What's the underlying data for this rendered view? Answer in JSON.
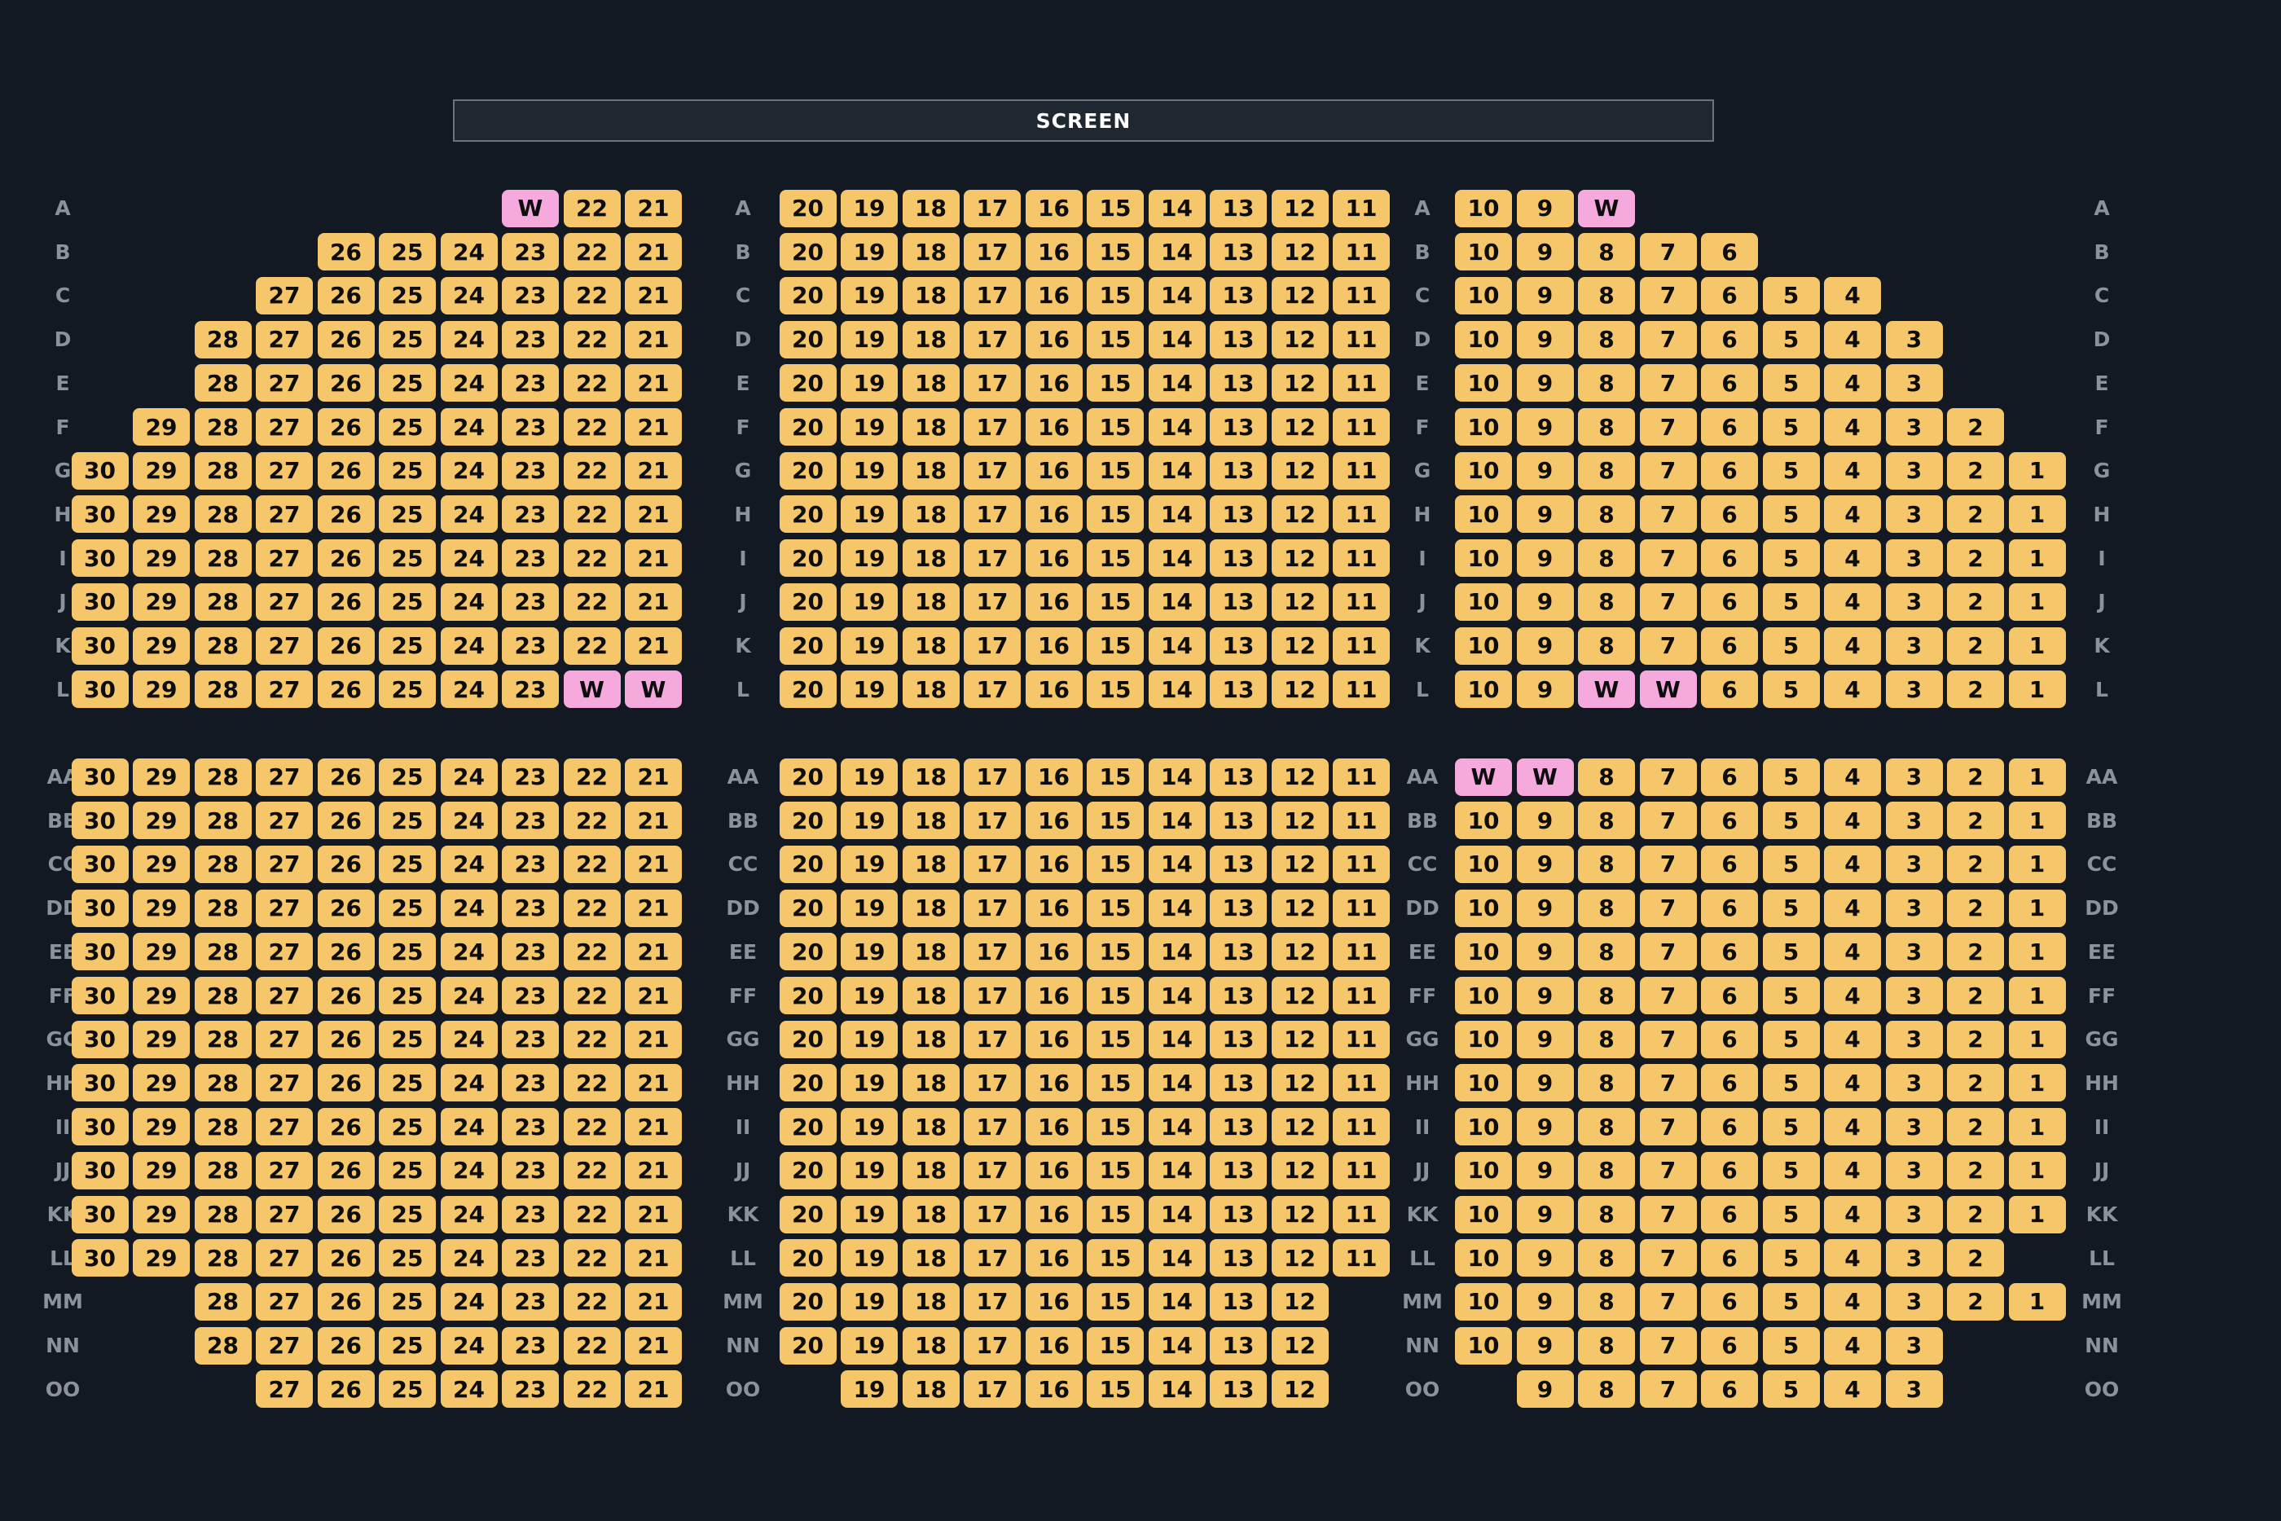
{
  "screen_label": "SCREEN",
  "colors": {
    "background": "#121922",
    "seat_available": "#f5c66a",
    "seat_wheelchair": "#f5a9dc",
    "row_label": "#8a929b"
  },
  "rows": [
    {
      "label": "A",
      "left": [
        "W",
        "22",
        "21"
      ],
      "center": [
        "20",
        "19",
        "18",
        "17",
        "16",
        "15",
        "14",
        "13",
        "12",
        "11"
      ],
      "right": [
        "10",
        "9",
        "W"
      ]
    },
    {
      "label": "B",
      "left": [
        "26",
        "25",
        "24",
        "23",
        "22",
        "21"
      ],
      "center": [
        "20",
        "19",
        "18",
        "17",
        "16",
        "15",
        "14",
        "13",
        "12",
        "11"
      ],
      "right": [
        "10",
        "9",
        "8",
        "7",
        "6"
      ]
    },
    {
      "label": "C",
      "left": [
        "27",
        "26",
        "25",
        "24",
        "23",
        "22",
        "21"
      ],
      "center": [
        "20",
        "19",
        "18",
        "17",
        "16",
        "15",
        "14",
        "13",
        "12",
        "11"
      ],
      "right": [
        "10",
        "9",
        "8",
        "7",
        "6",
        "5",
        "4"
      ]
    },
    {
      "label": "D",
      "left": [
        "28",
        "27",
        "26",
        "25",
        "24",
        "23",
        "22",
        "21"
      ],
      "center": [
        "20",
        "19",
        "18",
        "17",
        "16",
        "15",
        "14",
        "13",
        "12",
        "11"
      ],
      "right": [
        "10",
        "9",
        "8",
        "7",
        "6",
        "5",
        "4",
        "3"
      ]
    },
    {
      "label": "E",
      "left": [
        "28",
        "27",
        "26",
        "25",
        "24",
        "23",
        "22",
        "21"
      ],
      "center": [
        "20",
        "19",
        "18",
        "17",
        "16",
        "15",
        "14",
        "13",
        "12",
        "11"
      ],
      "right": [
        "10",
        "9",
        "8",
        "7",
        "6",
        "5",
        "4",
        "3"
      ]
    },
    {
      "label": "F",
      "left": [
        "29",
        "28",
        "27",
        "26",
        "25",
        "24",
        "23",
        "22",
        "21"
      ],
      "center": [
        "20",
        "19",
        "18",
        "17",
        "16",
        "15",
        "14",
        "13",
        "12",
        "11"
      ],
      "right": [
        "10",
        "9",
        "8",
        "7",
        "6",
        "5",
        "4",
        "3",
        "2"
      ]
    },
    {
      "label": "G",
      "left": [
        "30",
        "29",
        "28",
        "27",
        "26",
        "25",
        "24",
        "23",
        "22",
        "21"
      ],
      "center": [
        "20",
        "19",
        "18",
        "17",
        "16",
        "15",
        "14",
        "13",
        "12",
        "11"
      ],
      "right": [
        "10",
        "9",
        "8",
        "7",
        "6",
        "5",
        "4",
        "3",
        "2",
        "1"
      ]
    },
    {
      "label": "H",
      "left": [
        "30",
        "29",
        "28",
        "27",
        "26",
        "25",
        "24",
        "23",
        "22",
        "21"
      ],
      "center": [
        "20",
        "19",
        "18",
        "17",
        "16",
        "15",
        "14",
        "13",
        "12",
        "11"
      ],
      "right": [
        "10",
        "9",
        "8",
        "7",
        "6",
        "5",
        "4",
        "3",
        "2",
        "1"
      ]
    },
    {
      "label": "I",
      "left": [
        "30",
        "29",
        "28",
        "27",
        "26",
        "25",
        "24",
        "23",
        "22",
        "21"
      ],
      "center": [
        "20",
        "19",
        "18",
        "17",
        "16",
        "15",
        "14",
        "13",
        "12",
        "11"
      ],
      "right": [
        "10",
        "9",
        "8",
        "7",
        "6",
        "5",
        "4",
        "3",
        "2",
        "1"
      ]
    },
    {
      "label": "J",
      "left": [
        "30",
        "29",
        "28",
        "27",
        "26",
        "25",
        "24",
        "23",
        "22",
        "21"
      ],
      "center": [
        "20",
        "19",
        "18",
        "17",
        "16",
        "15",
        "14",
        "13",
        "12",
        "11"
      ],
      "right": [
        "10",
        "9",
        "8",
        "7",
        "6",
        "5",
        "4",
        "3",
        "2",
        "1"
      ]
    },
    {
      "label": "K",
      "left": [
        "30",
        "29",
        "28",
        "27",
        "26",
        "25",
        "24",
        "23",
        "22",
        "21"
      ],
      "center": [
        "20",
        "19",
        "18",
        "17",
        "16",
        "15",
        "14",
        "13",
        "12",
        "11"
      ],
      "right": [
        "10",
        "9",
        "8",
        "7",
        "6",
        "5",
        "4",
        "3",
        "2",
        "1"
      ]
    },
    {
      "label": "L",
      "left": [
        "30",
        "29",
        "28",
        "27",
        "26",
        "25",
        "24",
        "23",
        "W",
        "W"
      ],
      "center": [
        "20",
        "19",
        "18",
        "17",
        "16",
        "15",
        "14",
        "13",
        "12",
        "11"
      ],
      "right": [
        "10",
        "9",
        "W",
        "W",
        "6",
        "5",
        "4",
        "3",
        "2",
        "1"
      ]
    },
    {
      "label": "AA",
      "left": [
        "30",
        "29",
        "28",
        "27",
        "26",
        "25",
        "24",
        "23",
        "22",
        "21"
      ],
      "center": [
        "20",
        "19",
        "18",
        "17",
        "16",
        "15",
        "14",
        "13",
        "12",
        "11"
      ],
      "right": [
        "W",
        "W",
        "8",
        "7",
        "6",
        "5",
        "4",
        "3",
        "2",
        "1"
      ]
    },
    {
      "label": "BB",
      "left": [
        "30",
        "29",
        "28",
        "27",
        "26",
        "25",
        "24",
        "23",
        "22",
        "21"
      ],
      "center": [
        "20",
        "19",
        "18",
        "17",
        "16",
        "15",
        "14",
        "13",
        "12",
        "11"
      ],
      "right": [
        "10",
        "9",
        "8",
        "7",
        "6",
        "5",
        "4",
        "3",
        "2",
        "1"
      ]
    },
    {
      "label": "CC",
      "left": [
        "30",
        "29",
        "28",
        "27",
        "26",
        "25",
        "24",
        "23",
        "22",
        "21"
      ],
      "center": [
        "20",
        "19",
        "18",
        "17",
        "16",
        "15",
        "14",
        "13",
        "12",
        "11"
      ],
      "right": [
        "10",
        "9",
        "8",
        "7",
        "6",
        "5",
        "4",
        "3",
        "2",
        "1"
      ]
    },
    {
      "label": "DD",
      "left": [
        "30",
        "29",
        "28",
        "27",
        "26",
        "25",
        "24",
        "23",
        "22",
        "21"
      ],
      "center": [
        "20",
        "19",
        "18",
        "17",
        "16",
        "15",
        "14",
        "13",
        "12",
        "11"
      ],
      "right": [
        "10",
        "9",
        "8",
        "7",
        "6",
        "5",
        "4",
        "3",
        "2",
        "1"
      ]
    },
    {
      "label": "EE",
      "left": [
        "30",
        "29",
        "28",
        "27",
        "26",
        "25",
        "24",
        "23",
        "22",
        "21"
      ],
      "center": [
        "20",
        "19",
        "18",
        "17",
        "16",
        "15",
        "14",
        "13",
        "12",
        "11"
      ],
      "right": [
        "10",
        "9",
        "8",
        "7",
        "6",
        "5",
        "4",
        "3",
        "2",
        "1"
      ]
    },
    {
      "label": "FF",
      "left": [
        "30",
        "29",
        "28",
        "27",
        "26",
        "25",
        "24",
        "23",
        "22",
        "21"
      ],
      "center": [
        "20",
        "19",
        "18",
        "17",
        "16",
        "15",
        "14",
        "13",
        "12",
        "11"
      ],
      "right": [
        "10",
        "9",
        "8",
        "7",
        "6",
        "5",
        "4",
        "3",
        "2",
        "1"
      ]
    },
    {
      "label": "GG",
      "left": [
        "30",
        "29",
        "28",
        "27",
        "26",
        "25",
        "24",
        "23",
        "22",
        "21"
      ],
      "center": [
        "20",
        "19",
        "18",
        "17",
        "16",
        "15",
        "14",
        "13",
        "12",
        "11"
      ],
      "right": [
        "10",
        "9",
        "8",
        "7",
        "6",
        "5",
        "4",
        "3",
        "2",
        "1"
      ]
    },
    {
      "label": "HH",
      "left": [
        "30",
        "29",
        "28",
        "27",
        "26",
        "25",
        "24",
        "23",
        "22",
        "21"
      ],
      "center": [
        "20",
        "19",
        "18",
        "17",
        "16",
        "15",
        "14",
        "13",
        "12",
        "11"
      ],
      "right": [
        "10",
        "9",
        "8",
        "7",
        "6",
        "5",
        "4",
        "3",
        "2",
        "1"
      ]
    },
    {
      "label": "II",
      "left": [
        "30",
        "29",
        "28",
        "27",
        "26",
        "25",
        "24",
        "23",
        "22",
        "21"
      ],
      "center": [
        "20",
        "19",
        "18",
        "17",
        "16",
        "15",
        "14",
        "13",
        "12",
        "11"
      ],
      "right": [
        "10",
        "9",
        "8",
        "7",
        "6",
        "5",
        "4",
        "3",
        "2",
        "1"
      ]
    },
    {
      "label": "JJ",
      "left": [
        "30",
        "29",
        "28",
        "27",
        "26",
        "25",
        "24",
        "23",
        "22",
        "21"
      ],
      "center": [
        "20",
        "19",
        "18",
        "17",
        "16",
        "15",
        "14",
        "13",
        "12",
        "11"
      ],
      "right": [
        "10",
        "9",
        "8",
        "7",
        "6",
        "5",
        "4",
        "3",
        "2",
        "1"
      ]
    },
    {
      "label": "KK",
      "left": [
        "30",
        "29",
        "28",
        "27",
        "26",
        "25",
        "24",
        "23",
        "22",
        "21"
      ],
      "center": [
        "20",
        "19",
        "18",
        "17",
        "16",
        "15",
        "14",
        "13",
        "12",
        "11"
      ],
      "right": [
        "10",
        "9",
        "8",
        "7",
        "6",
        "5",
        "4",
        "3",
        "2",
        "1"
      ]
    },
    {
      "label": "LL",
      "left": [
        "30",
        "29",
        "28",
        "27",
        "26",
        "25",
        "24",
        "23",
        "22",
        "21"
      ],
      "center": [
        "20",
        "19",
        "18",
        "17",
        "16",
        "15",
        "14",
        "13",
        "12",
        "11"
      ],
      "right": [
        "10",
        "9",
        "8",
        "7",
        "6",
        "5",
        "4",
        "3",
        "2"
      ]
    },
    {
      "label": "MM",
      "left": [
        "28",
        "27",
        "26",
        "25",
        "24",
        "23",
        "22",
        "21"
      ],
      "center": [
        "20",
        "19",
        "18",
        "17",
        "16",
        "15",
        "14",
        "13",
        "12"
      ],
      "right": [
        "10",
        "9",
        "8",
        "7",
        "6",
        "5",
        "4",
        "3",
        "2",
        "1"
      ]
    },
    {
      "label": "NN",
      "left": [
        "28",
        "27",
        "26",
        "25",
        "24",
        "23",
        "22",
        "21"
      ],
      "center": [
        "20",
        "19",
        "18",
        "17",
        "16",
        "15",
        "14",
        "13",
        "12"
      ],
      "right": [
        "10",
        "9",
        "8",
        "7",
        "6",
        "5",
        "4",
        "3"
      ]
    },
    {
      "label": "OO",
      "left": [
        "27",
        "26",
        "25",
        "24",
        "23",
        "22",
        "21"
      ],
      "center": [
        "19",
        "18",
        "17",
        "16",
        "15",
        "14",
        "13",
        "12"
      ],
      "right": [
        "9",
        "8",
        "7",
        "6",
        "5",
        "4",
        "3"
      ]
    }
  ]
}
